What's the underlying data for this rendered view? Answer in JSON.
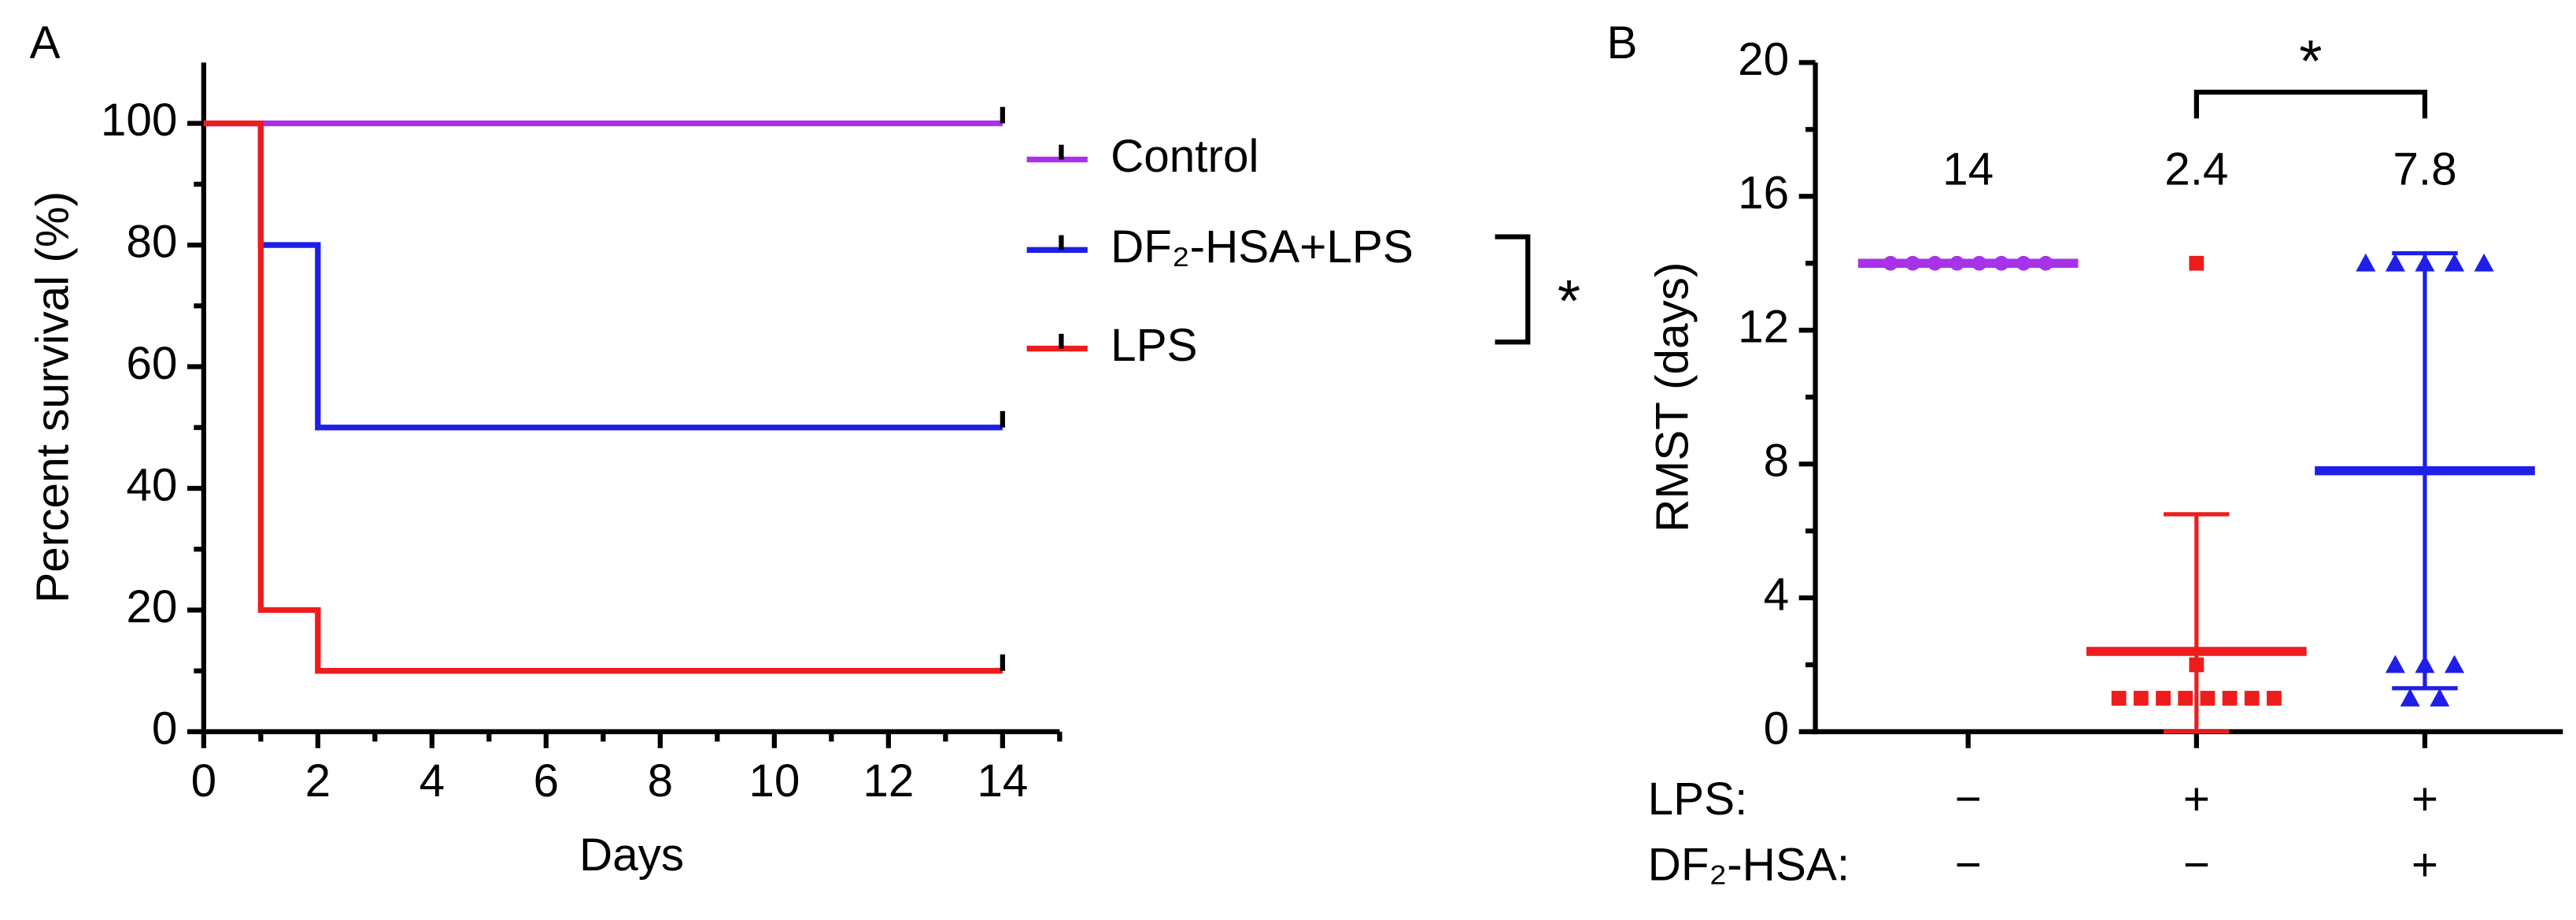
{
  "chart_data": [
    {
      "type": "line",
      "panel_label": "A",
      "step": true,
      "x_label": "Days",
      "y_label": "Percent survival (%)",
      "xlim": [
        0,
        15
      ],
      "ylim": [
        0,
        110
      ],
      "xticks": [
        0,
        2,
        4,
        6,
        8,
        10,
        12,
        14
      ],
      "yticks": [
        0,
        20,
        40,
        60,
        80,
        100
      ],
      "series": [
        {
          "name": "Control",
          "color": "#a832e8",
          "x": [
            0,
            14
          ],
          "values": [
            100,
            100
          ]
        },
        {
          "name": "DF₂-HSA+LPS",
          "color": "#1f1fe8",
          "x": [
            0,
            1,
            2,
            14
          ],
          "values": [
            100,
            80,
            50,
            50
          ]
        },
        {
          "name": "LPS",
          "color": "#ee1c1c",
          "x": [
            0,
            1,
            2,
            14
          ],
          "values": [
            100,
            20,
            10,
            10
          ]
        }
      ],
      "significance": {
        "between": [
          1,
          2
        ],
        "label": "*"
      }
    },
    {
      "type": "scatter",
      "panel_label": "B",
      "y_label": "RMST (days)",
      "ylim": [
        0,
        20
      ],
      "yticks": [
        0,
        4,
        8,
        12,
        16,
        20
      ],
      "groups": [
        {
          "color": "#a832e8",
          "marker": "circle",
          "points": [
            14,
            14,
            14,
            14,
            14,
            14,
            14,
            14
          ],
          "mean": 14,
          "sd": null
        },
        {
          "color": "#ee1c1c",
          "marker": "square",
          "points": [
            14,
            2,
            1,
            1,
            1,
            1,
            1,
            1,
            1,
            1
          ],
          "mean": 2.4,
          "sd": 4.1
        },
        {
          "color": "#1f1fe8",
          "marker": "triangle",
          "points": [
            14,
            14,
            14,
            14,
            14,
            2,
            2,
            2,
            1,
            1
          ],
          "mean": 7.8,
          "sd": 6.5
        }
      ],
      "conditions": [
        {
          "label": "LPS:",
          "values": [
            "−",
            "+",
            "+"
          ]
        },
        {
          "label": "DF₂-HSA:",
          "values": [
            "−",
            "−",
            "+"
          ]
        }
      ],
      "significance": {
        "between": [
          1,
          2
        ],
        "label": "*"
      }
    }
  ]
}
